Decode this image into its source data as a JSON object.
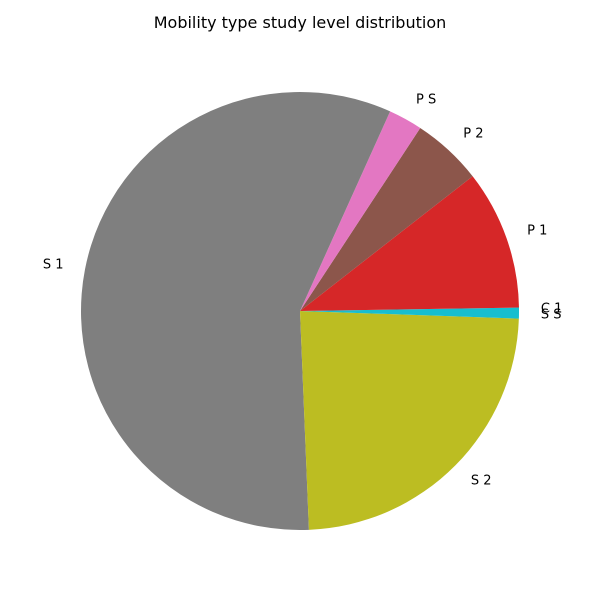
{
  "chart_data": {
    "type": "pie",
    "title": "Mobility type study level distribution",
    "start_angle_deg": 0,
    "direction": "counterclockwise",
    "slices": [
      {
        "label": "C 1",
        "value": 0.25,
        "color": "#17becf"
      },
      {
        "label": "P 1",
        "value": 10.3,
        "color": "#d62728"
      },
      {
        "label": "P 2",
        "value": 5.2,
        "color": "#8c564b"
      },
      {
        "label": "P S",
        "value": 2.5,
        "color": "#e377c2"
      },
      {
        "label": "S 1",
        "value": 57.4,
        "color": "#7f7f7f"
      },
      {
        "label": "S 2",
        "value": 23.8,
        "color": "#bcbd22"
      },
      {
        "label": "S S",
        "value": 0.55,
        "color": "#17becf"
      }
    ]
  }
}
